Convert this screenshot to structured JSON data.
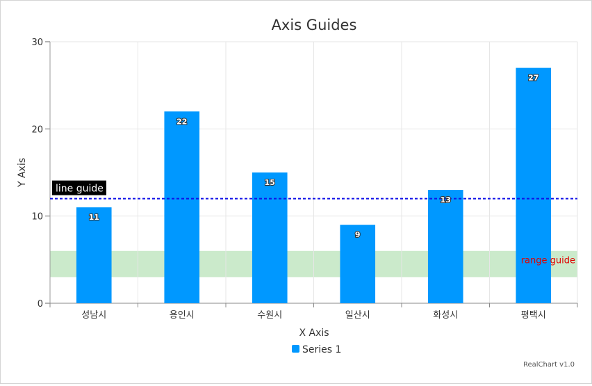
{
  "chart_data": {
    "type": "bar",
    "title": "Axis Guides",
    "xlabel": "X Axis",
    "ylabel": "Y Axis",
    "categories": [
      "성남시",
      "용인시",
      "수원시",
      "일산시",
      "화성시",
      "평택시"
    ],
    "series": [
      {
        "name": "Series 1",
        "values": [
          11,
          22,
          15,
          9,
          13,
          27
        ],
        "color": "#0098ff"
      }
    ],
    "ylim": [
      0,
      30
    ],
    "yticks": [
      0,
      10,
      20,
      30
    ],
    "grid": true,
    "legend": "bottom",
    "guides": [
      {
        "type": "line",
        "label": "line guide",
        "value": 12,
        "color": "#1010e8"
      },
      {
        "type": "range",
        "label": "range guide",
        "from": 3,
        "to": 6,
        "color": "#a8dca8",
        "label_color": "#e00000"
      }
    ]
  },
  "credit": "RealChart v1.0"
}
